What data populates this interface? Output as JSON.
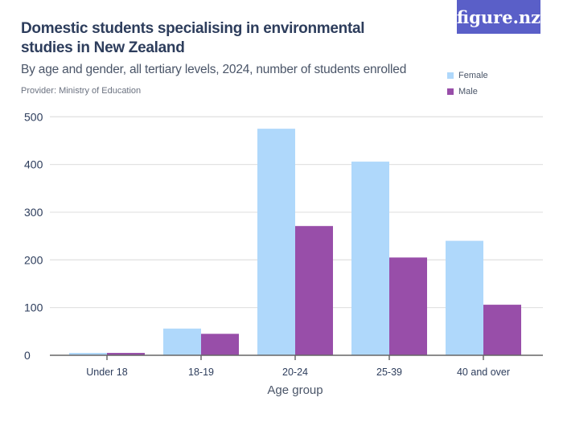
{
  "title": "Domestic students specialising in environmental studies in New Zealand",
  "subtitle": "By age and gender, all tertiary levels, 2024, number of students enrolled",
  "provider": "Provider: Ministry of Education",
  "logo": "figure.nz",
  "chart_data": {
    "type": "bar",
    "title": "Domestic students specialising in environmental studies in New Zealand",
    "xlabel": "Age group",
    "ylabel": "",
    "categories": [
      "Under 18",
      "18-19",
      "20-24",
      "25-39",
      "40 and over"
    ],
    "series": [
      {
        "name": "Female",
        "color": "#afd8fb",
        "values": [
          5,
          56,
          475,
          406,
          240
        ]
      },
      {
        "name": "Male",
        "color": "#984ea9",
        "values": [
          5,
          45,
          271,
          205,
          106
        ]
      }
    ],
    "ylim": [
      0,
      500
    ],
    "yticks": [
      0,
      100,
      200,
      300,
      400,
      500
    ],
    "grid": true,
    "legend": "top-right"
  }
}
